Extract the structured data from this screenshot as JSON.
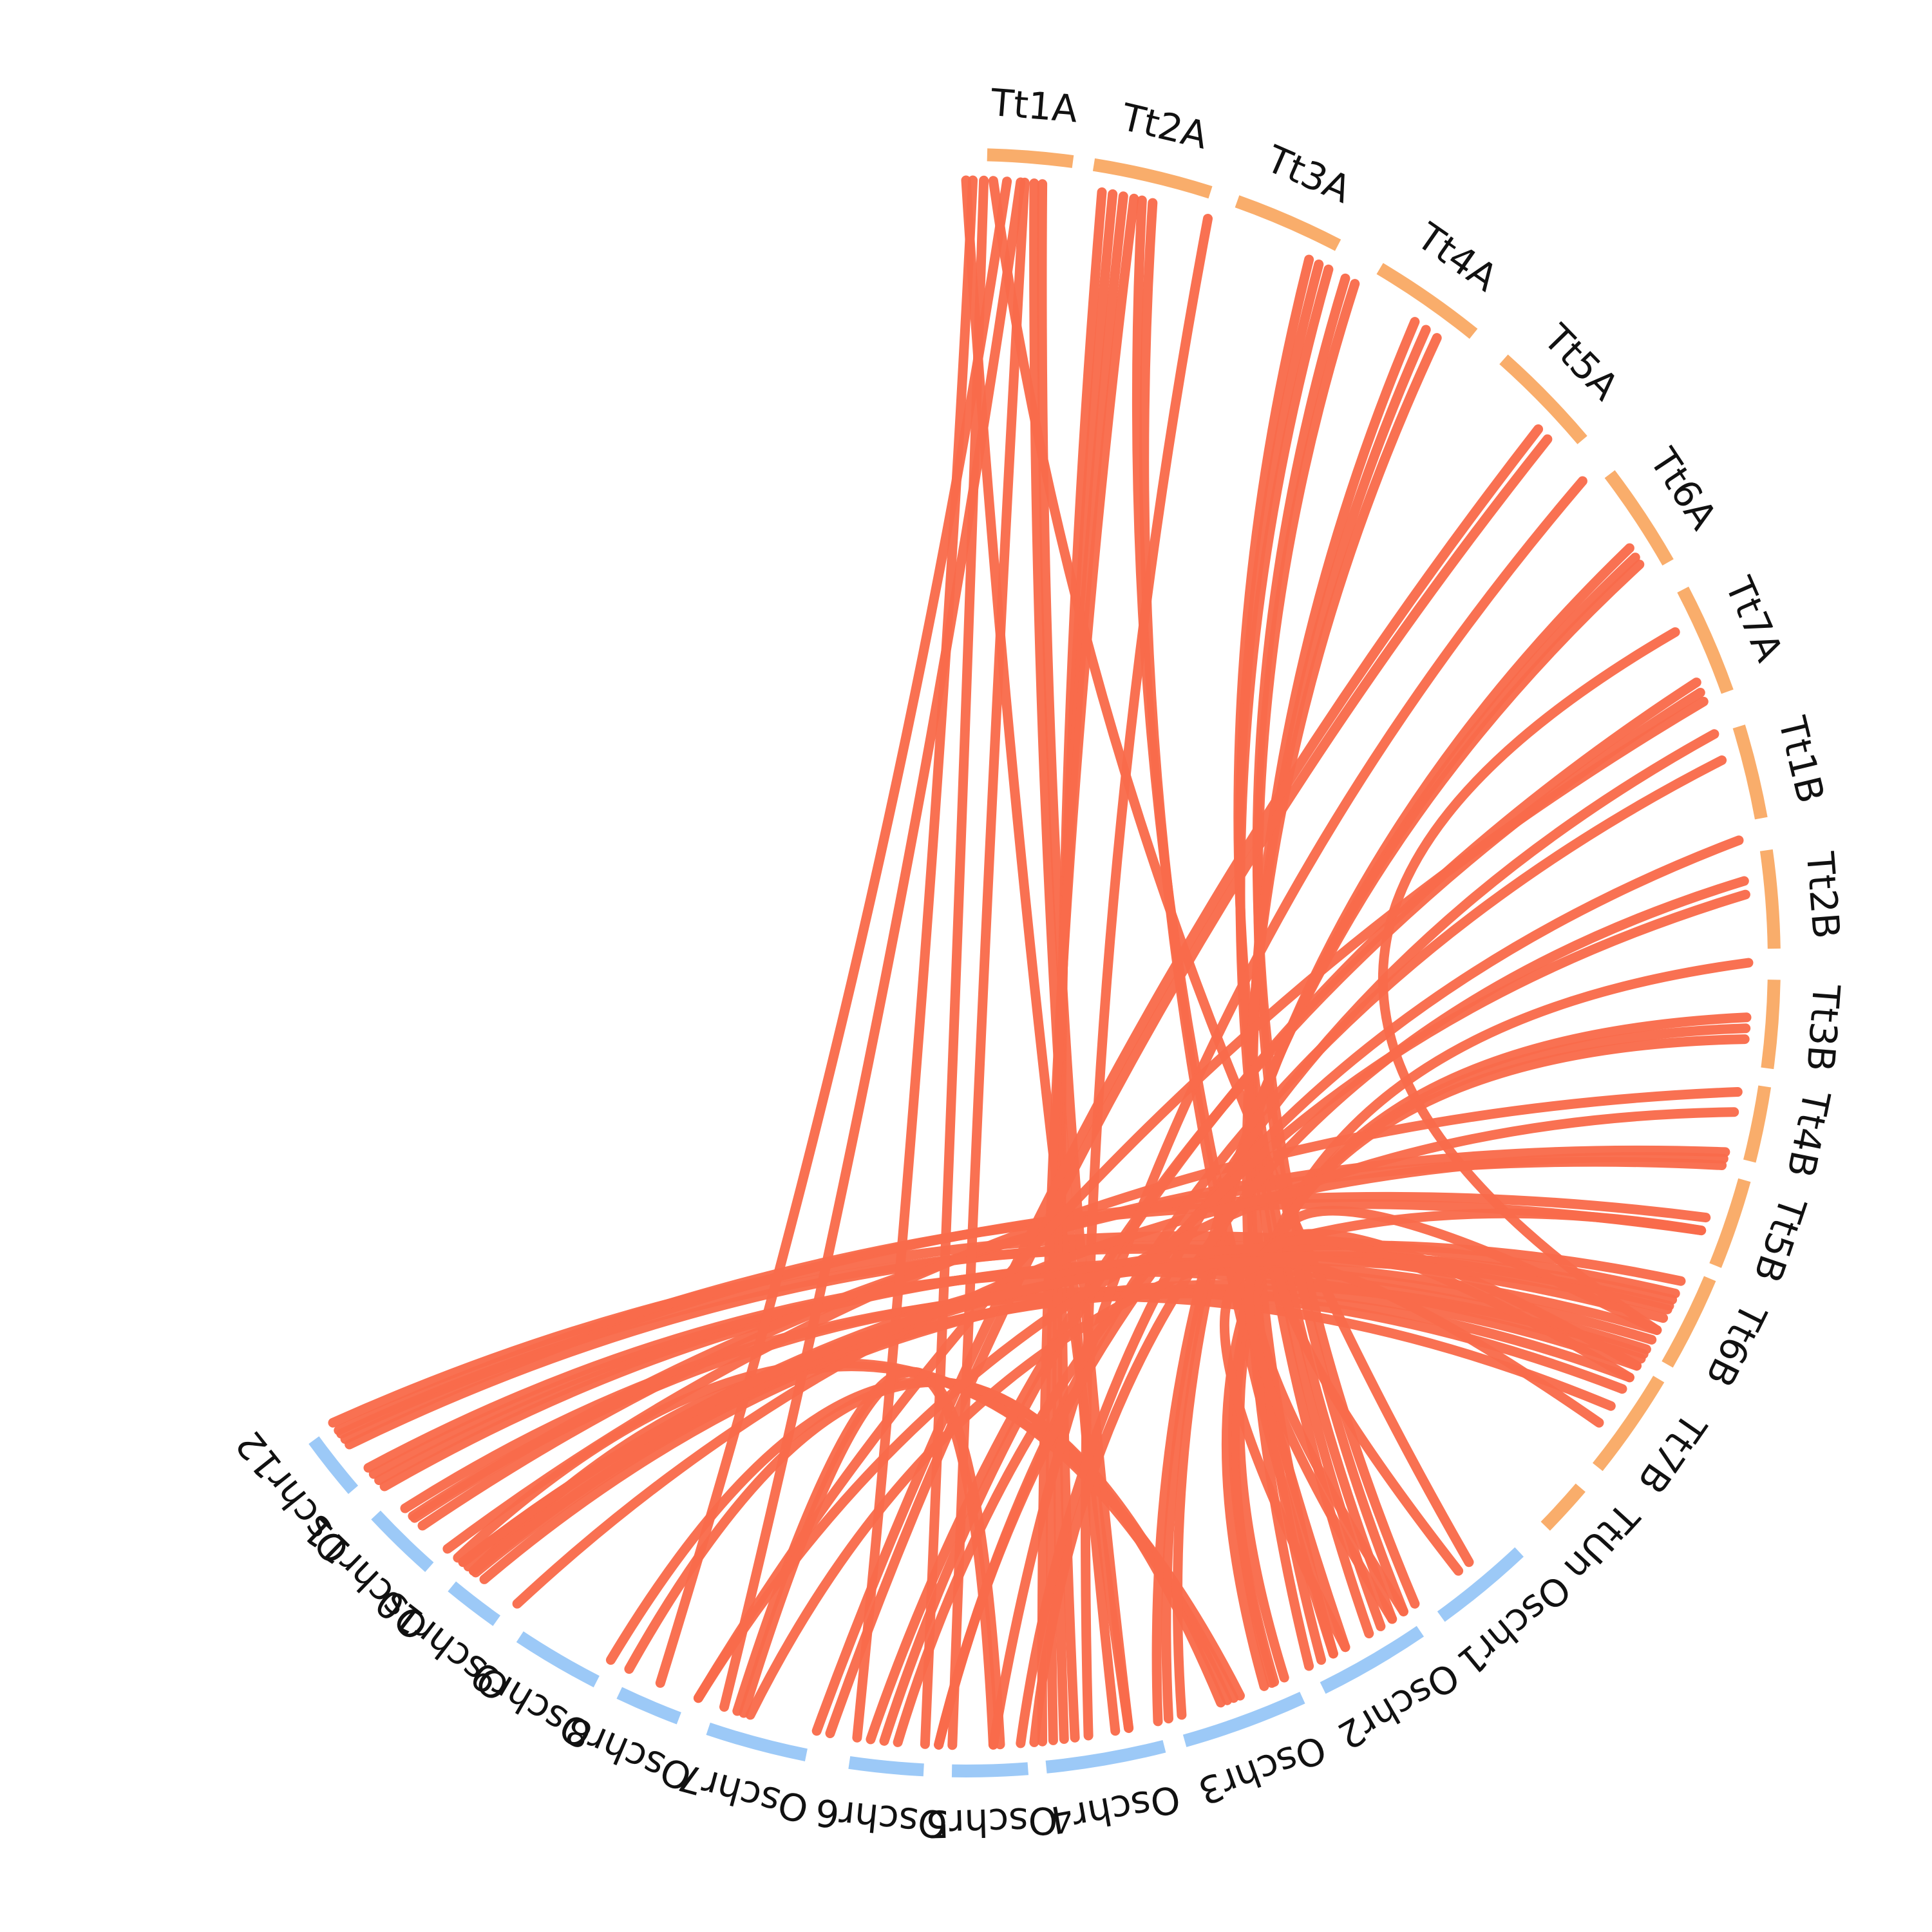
{
  "colors": {
    "background": "#ffffff",
    "rice_segment": "#9cc9f7",
    "wheat_segment": "#f9ad6b",
    "link": "#f96b4b",
    "label": "#111111"
  },
  "chromosomes": [
    {
      "id": "Tt1A",
      "label": "Tt1A",
      "group": "wheat"
    },
    {
      "id": "Tt2A",
      "label": "Tt2A",
      "group": "wheat"
    },
    {
      "id": "Tt3A",
      "label": "Tt3A",
      "group": "wheat"
    },
    {
      "id": "Tt4A",
      "label": "Tt4A",
      "group": "wheat"
    },
    {
      "id": "Tt5A",
      "label": "Tt5A",
      "group": "wheat"
    },
    {
      "id": "Tt6A",
      "label": "Tt6A",
      "group": "wheat"
    },
    {
      "id": "Tt7A",
      "label": "Tt7A",
      "group": "wheat"
    },
    {
      "id": "Tt1B",
      "label": "Tt1B",
      "group": "wheat"
    },
    {
      "id": "Tt2B",
      "label": "Tt2B",
      "group": "wheat"
    },
    {
      "id": "Tt3B",
      "label": "Tt3B",
      "group": "wheat"
    },
    {
      "id": "Tt4B",
      "label": "Tt4B",
      "group": "wheat"
    },
    {
      "id": "Tt5B",
      "label": "Tt5B",
      "group": "wheat"
    },
    {
      "id": "Tt6B",
      "label": "Tt6B",
      "group": "wheat"
    },
    {
      "id": "Tt7B",
      "label": "Tt7B",
      "group": "wheat"
    },
    {
      "id": "TtUn",
      "label": "TtUn",
      "group": "wheat"
    },
    {
      "id": "Oschr1",
      "label": "Oschr1",
      "group": "rice"
    },
    {
      "id": "Oschr2",
      "label": "Oschr2",
      "group": "rice"
    },
    {
      "id": "Oschr3",
      "label": "Oschr3",
      "group": "rice"
    },
    {
      "id": "Oschr4",
      "label": "Oschr4",
      "group": "rice"
    },
    {
      "id": "Oschr5",
      "label": "Oschr5",
      "group": "rice"
    },
    {
      "id": "Oschr6",
      "label": "Oschr6",
      "group": "rice"
    },
    {
      "id": "Oschr7",
      "label": "Oschr7",
      "group": "rice"
    },
    {
      "id": "Oschr8",
      "label": "Oschr8",
      "group": "rice"
    },
    {
      "id": "Oschr9",
      "label": "Oschr9",
      "group": "rice"
    },
    {
      "id": "Oschr10",
      "label": "Oschr10",
      "group": "rice"
    },
    {
      "id": "Oschr11",
      "label": "Oschr11",
      "group": "rice"
    },
    {
      "id": "Oschr12",
      "label": "Oschr12",
      "group": "rice"
    }
  ]
}
